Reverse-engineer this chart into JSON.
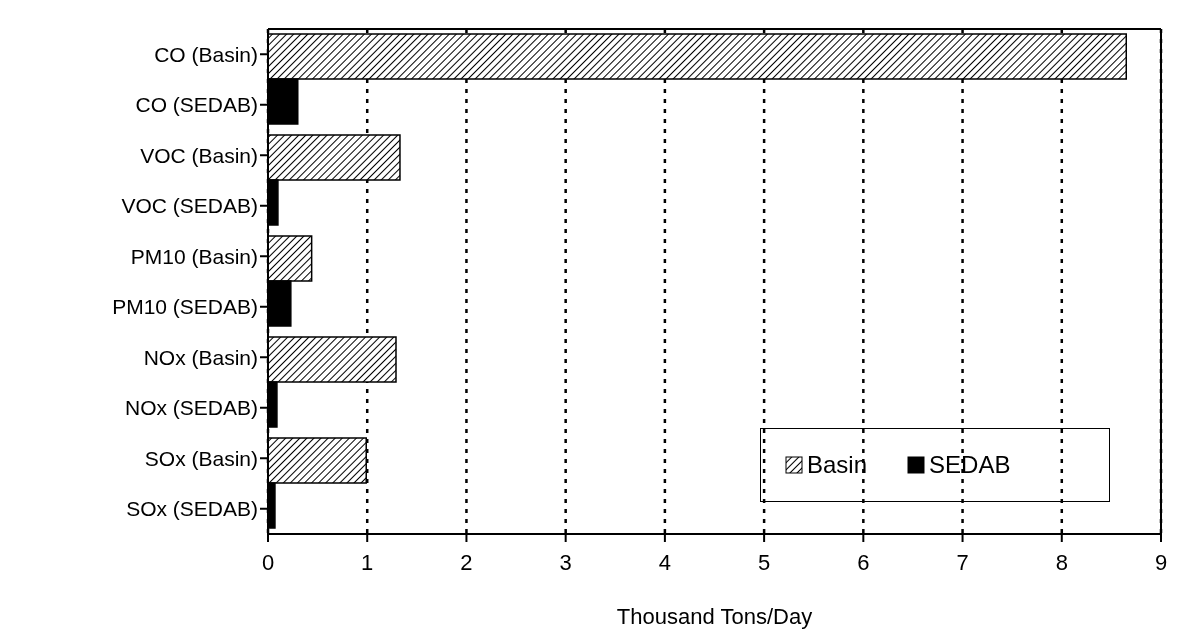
{
  "chart_data": {
    "type": "bar",
    "orientation": "horizontal",
    "xlabel": "Thousand Tons/Day",
    "categories": [
      "CO (Basin)",
      "CO (SEDAB)",
      "VOC (Basin)",
      "VOC (SEDAB)",
      "PM10 (Basin)",
      "PM10 (SEDAB)",
      "NOx (Basin)",
      "NOx (SEDAB)",
      "SOx (Basin)",
      "SOx (SEDAB)"
    ],
    "series": [
      {
        "name": "Basin",
        "color": "#000000",
        "values": [
          8.65,
          null,
          1.33,
          null,
          0.44,
          null,
          1.29,
          null,
          0.99,
          null
        ]
      },
      {
        "name": "SEDAB",
        "color": "#000000",
        "values": [
          null,
          0.3,
          null,
          0.1,
          null,
          0.23,
          null,
          0.09,
          null,
          0.07
        ]
      }
    ],
    "xlim": [
      0,
      9
    ],
    "xticks": [
      0,
      1,
      2,
      3,
      4,
      5,
      6,
      7,
      8,
      9
    ],
    "grid": "x",
    "legend": "bottom right"
  }
}
